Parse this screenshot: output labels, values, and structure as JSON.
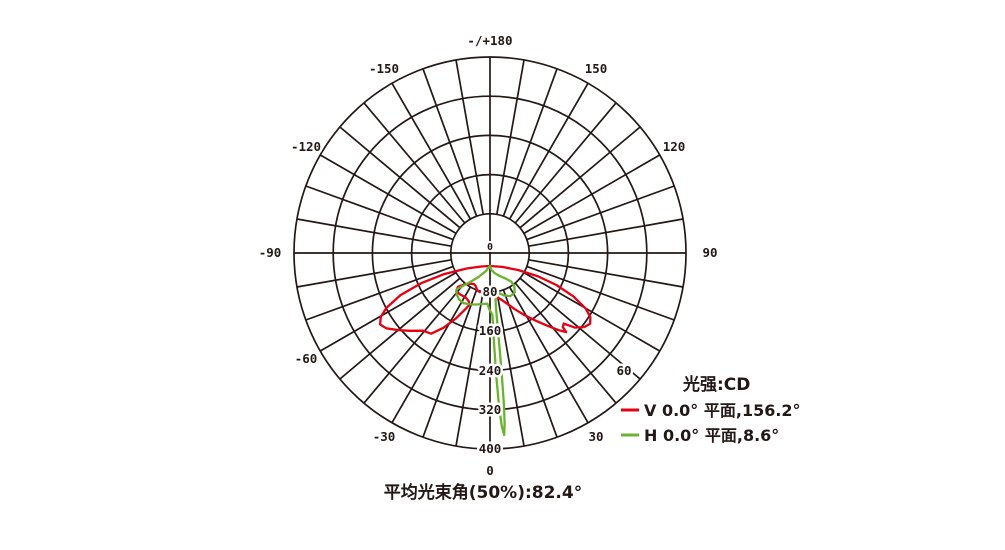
{
  "chart_data": {
    "type": "polar",
    "subtype": "photometric-intensity-distribution",
    "units_label": "光强:CD",
    "angle_zero_position": "bottom",
    "angle_step_deg": 10,
    "radial_ticks": [
      80,
      160,
      240,
      320,
      400
    ],
    "radial_max": 400,
    "radial_origin_label": "0",
    "grid_color": "#231815",
    "background_color": "#ffffff",
    "angle_labels": [
      {
        "deg": 180,
        "label": "-/+180"
      },
      {
        "deg": 150,
        "label": "150"
      },
      {
        "deg": 120,
        "label": "120"
      },
      {
        "deg": 90,
        "label": "90"
      },
      {
        "deg": 60,
        "label": "60"
      },
      {
        "deg": 30,
        "label": "30"
      },
      {
        "deg": 0,
        "label": "0"
      },
      {
        "deg": -30,
        "label": "-30"
      },
      {
        "deg": -60,
        "label": "-60"
      },
      {
        "deg": -90,
        "label": "-90"
      },
      {
        "deg": -120,
        "label": "-120"
      },
      {
        "deg": -150,
        "label": "-150"
      }
    ],
    "series": [
      {
        "id": "V",
        "name": "V 0.0° 平面,156.2°",
        "plane": "V 0.0°",
        "beam_angle_deg": 156.2,
        "color": "#e60012",
        "points": [
          [
            -90,
            0
          ],
          [
            -87,
            18
          ],
          [
            -84,
            48
          ],
          [
            -80,
            95
          ],
          [
            -76,
            145
          ],
          [
            -72,
            192
          ],
          [
            -68,
            228
          ],
          [
            -65,
            246
          ],
          [
            -62,
            254
          ],
          [
            -59,
            247
          ],
          [
            -55,
            228
          ],
          [
            -51,
            210
          ],
          [
            -46,
            190
          ],
          [
            -41,
            183
          ],
          [
            -37,
            158
          ],
          [
            -33,
            128
          ],
          [
            -30,
            104
          ],
          [
            -28,
            90
          ],
          [
            -31,
            84
          ],
          [
            -38,
            81
          ],
          [
            -46,
            84
          ],
          [
            -53,
            86
          ],
          [
            -57,
            78
          ],
          [
            -54,
            64
          ],
          [
            -48,
            54
          ],
          [
            -41,
            49
          ],
          [
            -34,
            51
          ],
          [
            -28,
            56
          ],
          [
            -22,
            57
          ],
          [
            -15,
            56
          ],
          [
            -8,
            58
          ],
          [
            0,
            61
          ],
          [
            7,
            63
          ],
          [
            13,
            66
          ],
          [
            19,
            73
          ],
          [
            25,
            86
          ],
          [
            30,
            102
          ],
          [
            35,
            122
          ],
          [
            40,
            146
          ],
          [
            44,
            170
          ],
          [
            47,
            192
          ],
          [
            49,
            206
          ],
          [
            50,
            194
          ],
          [
            52,
            191
          ],
          [
            54,
            214
          ],
          [
            57,
            229
          ],
          [
            60,
            236
          ],
          [
            63,
            230
          ],
          [
            66,
            214
          ],
          [
            70,
            181
          ],
          [
            74,
            141
          ],
          [
            78,
            99
          ],
          [
            82,
            58
          ],
          [
            86,
            25
          ],
          [
            90,
            0
          ]
        ]
      },
      {
        "id": "H",
        "name": "H 0.0° 平面,8.6°",
        "plane": "H 0.0°",
        "beam_angle_deg": 8.6,
        "color": "#6ab32e",
        "points": [
          [
            0,
            0
          ],
          [
            -40,
            14
          ],
          [
            -46,
            32
          ],
          [
            -51,
            52
          ],
          [
            -54,
            70
          ],
          [
            -55,
            84
          ],
          [
            -50,
            89
          ],
          [
            -43,
            93
          ],
          [
            -35,
            93
          ],
          [
            -27,
            88
          ],
          [
            -19,
            83
          ],
          [
            -11,
            79
          ],
          [
            -4,
            77
          ],
          [
            -1,
            88
          ],
          [
            2.8,
            100
          ],
          [
            3,
            160
          ],
          [
            3.3,
            230
          ],
          [
            3.7,
            290
          ],
          [
            4.2,
            328
          ],
          [
            4.8,
            346
          ],
          [
            5.3,
            322
          ],
          [
            5.7,
            287
          ],
          [
            6.1,
            232
          ],
          [
            6.6,
            172
          ],
          [
            7.3,
            118
          ],
          [
            8.5,
            80
          ],
          [
            11,
            58
          ],
          [
            17,
            57
          ],
          [
            25,
            66
          ],
          [
            34,
            74
          ],
          [
            43,
            74
          ],
          [
            50,
            65
          ],
          [
            54,
            54
          ],
          [
            51,
            40
          ],
          [
            44,
            28
          ],
          [
            33,
            17
          ],
          [
            18,
            8
          ],
          [
            0,
            0
          ]
        ]
      }
    ]
  },
  "legend": {
    "title": "光强:CD",
    "items": [
      {
        "label": "V 0.0° 平面,156.2°"
      },
      {
        "label": "H 0.0° 平面,8.6°"
      }
    ]
  },
  "footer": {
    "text": "平均光束角(50%):82.4°"
  }
}
